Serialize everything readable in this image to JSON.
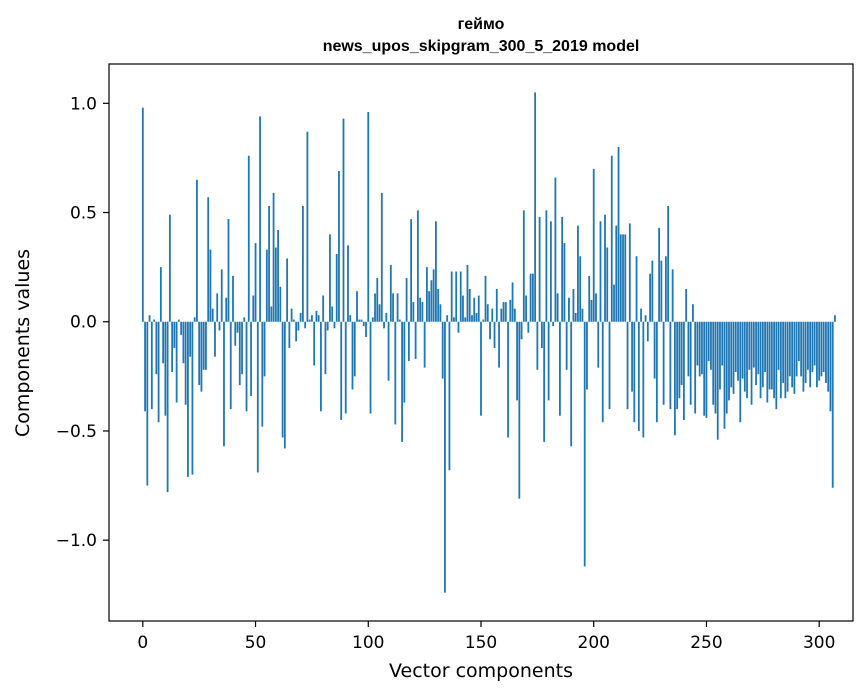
{
  "chart_data": {
    "type": "bar",
    "title": "геймо",
    "subtitle": "news_upos_skipgram_300_5_2019 model",
    "xlabel": "Vector components",
    "ylabel": "Components values",
    "xlim": [
      -15,
      315
    ],
    "ylim": [
      -1.37,
      1.18
    ],
    "xticks": [
      0,
      50,
      100,
      150,
      200,
      250,
      300
    ],
    "xtick_labels": [
      "0",
      "50",
      "100",
      "150",
      "200",
      "250",
      "300"
    ],
    "yticks": [
      -1.0,
      -0.5,
      0.0,
      0.5,
      1.0
    ],
    "ytick_labels": [
      "−1.0",
      "−0.5",
      "0.0",
      "0.5",
      "1.0"
    ],
    "bar_color": "#1f77b4",
    "grid": false,
    "legend": "none",
    "values": [
      0.98,
      -0.41,
      -0.75,
      0.03,
      -0.4,
      0.01,
      -0.24,
      -0.46,
      0.25,
      -0.19,
      -0.43,
      -0.78,
      0.49,
      -0.23,
      -0.12,
      -0.37,
      0.01,
      -0.06,
      -0.19,
      -0.38,
      -0.71,
      -0.16,
      -0.7,
      0.02,
      0.65,
      -0.29,
      -0.32,
      -0.22,
      -0.22,
      0.57,
      0.33,
      0.06,
      -0.16,
      0.13,
      -0.04,
      0.24,
      -0.57,
      0.11,
      0.47,
      -0.4,
      0.21,
      -0.11,
      -0.05,
      -0.29,
      -0.24,
      0.02,
      -0.41,
      0.76,
      -0.34,
      0.12,
      0.36,
      -0.69,
      0.94,
      -0.48,
      -0.25,
      0.33,
      0.53,
      0.07,
      0.59,
      0.34,
      0.42,
      0.16,
      -0.53,
      -0.58,
      0.29,
      -0.12,
      0.06,
      0.01,
      -0.09,
      -0.04,
      0.04,
      0.53,
      -0.03,
      0.87,
      0.01,
      0.03,
      -0.2,
      0.05,
      0.03,
      -0.41,
      0.12,
      -0.24,
      -0.04,
      0.4,
      0.07,
      -0.03,
      0.31,
      0.69,
      -0.45,
      0.93,
      -0.42,
      0.35,
      0.03,
      -0.31,
      -0.25,
      0.14,
      0.01,
      0.01,
      -0.02,
      -0.07,
      0.96,
      -0.42,
      0.02,
      0.13,
      0.2,
      0.08,
      0.59,
      -0.03,
      0.04,
      -0.27,
      0.26,
      0.13,
      -0.47,
      0.13,
      0.01,
      -0.55,
      -0.37,
      0.2,
      -0.18,
      0.47,
      0.09,
      -0.17,
      0.51,
      0.11,
      0.09,
      -0.21,
      0.25,
      0.14,
      0.19,
      0.24,
      0.46,
      0.15,
      0.08,
      -0.26,
      -1.24,
      0.03,
      -0.68,
      0.23,
      0.02,
      0.23,
      -0.05,
      0.23,
      0.12,
      0.02,
      0.26,
      0.15,
      0.03,
      0.11,
      0.04,
      0.12,
      -0.43,
      0.01,
      0.21,
      0.08,
      -0.08,
      0.06,
      -0.12,
      0.15,
      -0.21,
      0.06,
      0.09,
      0.09,
      -0.53,
      0.1,
      0.18,
      0.06,
      -0.36,
      -0.81,
      -0.08,
      0.51,
      0.12,
      -0.05,
      0.22,
      0.22,
      1.05,
      -0.22,
      0.48,
      -0.12,
      -0.55,
      0.51,
      -0.36,
      0.46,
      -0.02,
      0.66,
      0.13,
      -0.43,
      0.48,
      0.36,
      -0.22,
      0.11,
      -0.57,
      0.15,
      0.04,
      0.44,
      0.3,
      0.06,
      -1.12,
      -0.31,
      0.21,
      0.1,
      0.7,
      0.13,
      -0.21,
      0.46,
      -0.46,
      0.49,
      0.34,
      -0.4,
      0.76,
      0.17,
      0.44,
      0.8,
      0.4,
      0.4,
      0.4,
      -0.4,
      0.45,
      -0.32,
      -0.46,
      0.3,
      -0.5,
      0.06,
      -0.53,
      0.03,
      -0.09,
      0.22,
      0.28,
      -0.26,
      -0.46,
      0.43,
      0.28,
      -0.38,
      0.3,
      0.53,
      -0.4,
      0.24,
      -0.52,
      -0.4,
      -0.35,
      -0.29,
      -0.45,
      0.15,
      -0.25,
      -0.38,
      0.08,
      -0.42,
      -0.2,
      -0.25,
      -0.24,
      -0.43,
      -0.44,
      -0.18,
      -0.22,
      -0.38,
      -0.42,
      -0.54,
      -0.31,
      -0.2,
      -0.49,
      -0.42,
      -0.36,
      -0.3,
      -0.33,
      -0.23,
      -0.27,
      -0.46,
      -0.26,
      -0.32,
      -0.35,
      -0.22,
      -0.38,
      -0.21,
      -0.29,
      -0.24,
      -0.35,
      -0.3,
      -0.23,
      -0.37,
      -0.31,
      -0.31,
      -0.35,
      -0.4,
      -0.22,
      -0.35,
      -0.28,
      -0.35,
      -0.32,
      -0.25,
      -0.3,
      -0.33,
      -0.25,
      -0.18,
      -0.25,
      -0.32,
      -0.28,
      -0.22,
      -0.3,
      -0.23,
      -0.2,
      -0.3,
      -0.27,
      -0.25,
      -0.23,
      -0.28,
      -0.32,
      -0.41,
      -0.76,
      0.03
    ]
  }
}
